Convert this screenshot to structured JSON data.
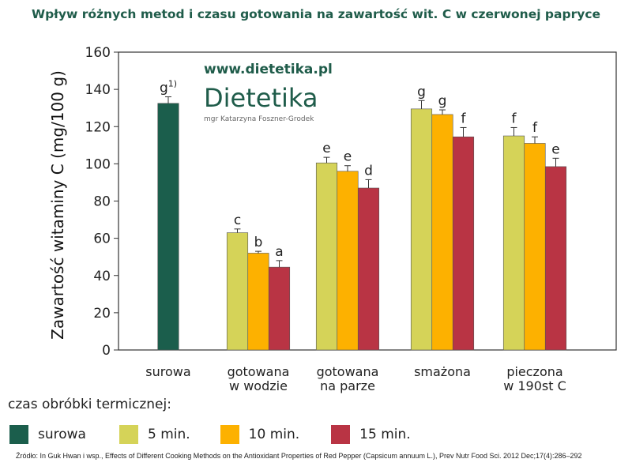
{
  "title": "Wpływ różnych metod i czasu gotowania na zawartość wit. C w czerwonej papryce",
  "watermark": {
    "url": "www.dietetika.pl",
    "logo": "Dietetika",
    "author": "mgr Katarzyna Foszner-Grodek"
  },
  "chart_data": {
    "type": "bar",
    "ylabel": "Zawartość witaminy C   (mg/100 g)",
    "ylim": [
      0,
      160
    ],
    "yticks": [
      0,
      20,
      40,
      60,
      80,
      100,
      120,
      140,
      160
    ],
    "grid": false,
    "categories": [
      "surowa",
      "gotowana\nw wodzie",
      "gotowana\nna parze",
      "smażona",
      "pieczona\nw 190st C"
    ],
    "series": [
      {
        "name": "surowa",
        "color": "#1b5e4c",
        "values": [
          132.5,
          null,
          null,
          null,
          null
        ],
        "errors": [
          3.5,
          null,
          null,
          null,
          null
        ],
        "labels": [
          "g",
          "",
          "",
          "",
          ""
        ]
      },
      {
        "name": "5 min.",
        "color": "#d5d358",
        "values": [
          null,
          63,
          100.5,
          129.5,
          115
        ],
        "errors": [
          null,
          2,
          3,
          4.5,
          4.5
        ],
        "labels": [
          "",
          "c",
          "e",
          "g",
          "f"
        ]
      },
      {
        "name": "10 min.",
        "color": "#fdb100",
        "values": [
          null,
          52,
          96,
          126.5,
          111
        ],
        "errors": [
          null,
          1,
          3,
          2.5,
          3.5
        ],
        "labels": [
          "",
          "b",
          "e",
          "g",
          "f"
        ]
      },
      {
        "name": "15 min.",
        "color": "#b93444",
        "values": [
          null,
          44.5,
          87,
          114.5,
          98.5
        ],
        "errors": [
          null,
          3.5,
          4.5,
          5,
          4.5
        ],
        "labels": [
          "",
          "a",
          "d",
          "f",
          "e"
        ]
      }
    ],
    "footnote_mark": "1)",
    "legend_title": "czas obróbki termicznej:",
    "legend_position": "bottom"
  },
  "source": "Źródło: In Guk Hwan i wsp., Effects of Different Cooking Methods on the Antioxidant Properties of Red Pepper (Capsicum annuum L.), Prev Nutr Food Sci. 2012 Dec;17(4):286–292"
}
